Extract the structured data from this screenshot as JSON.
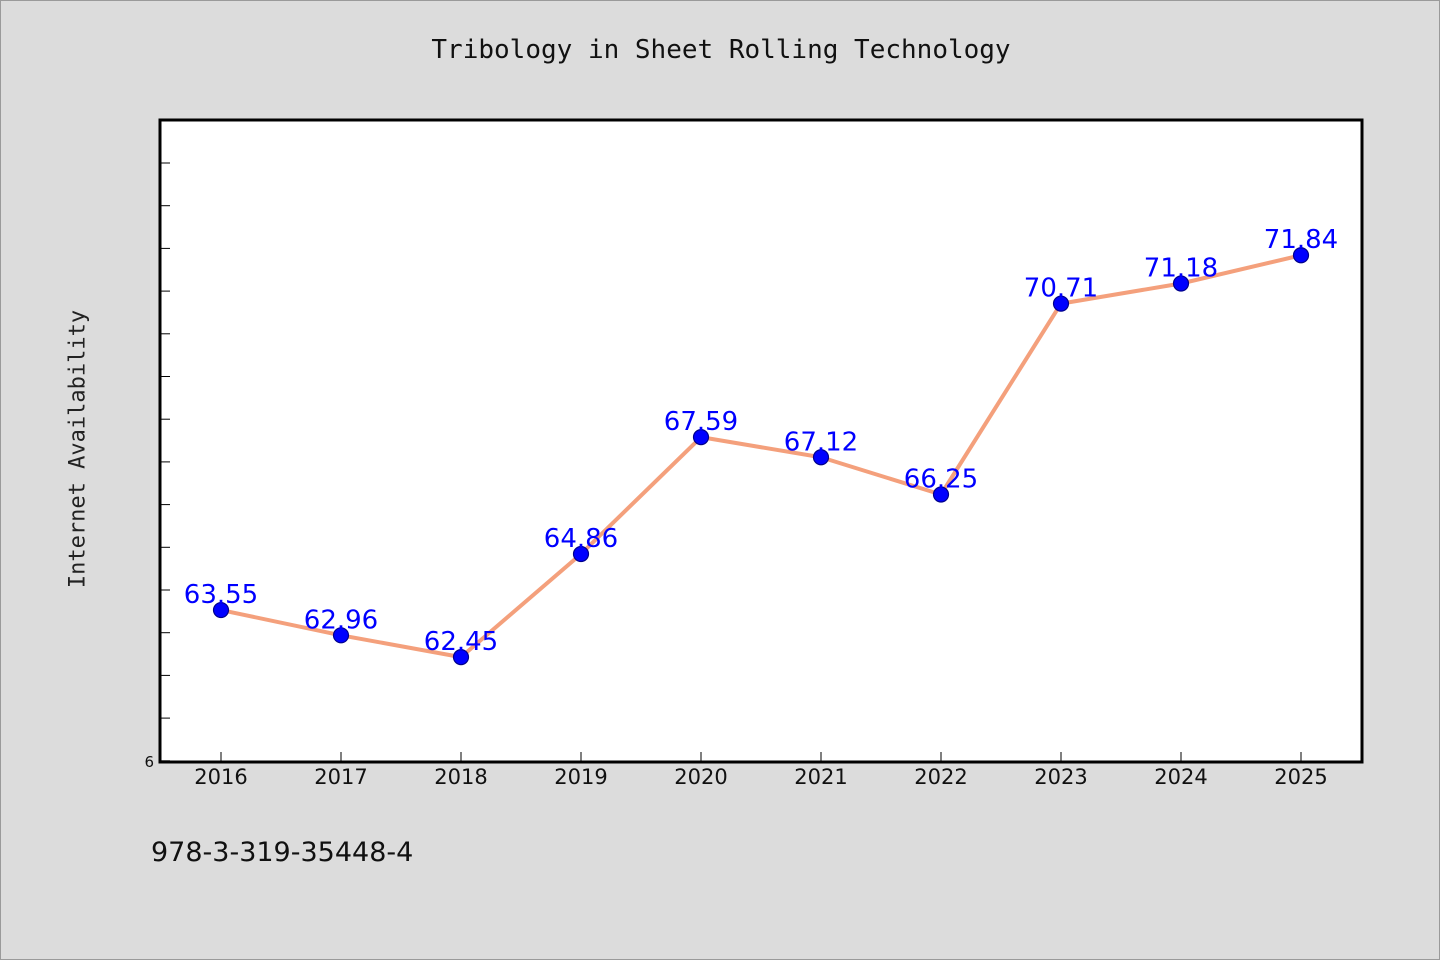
{
  "colors": {
    "background": "#dcdcdc",
    "plot_area": "#ffffff",
    "line": "#f4a07c",
    "marker": "#0000ff",
    "data_label": "#0000ff"
  },
  "footer_text": "978-3-319-35448-4",
  "chart_data": {
    "type": "line",
    "title": "Tribology in Sheet Rolling Technology",
    "xlabel": "",
    "ylabel": "Internet Availability",
    "categories": [
      "2016",
      "2017",
      "2018",
      "2019",
      "2020",
      "2021",
      "2022",
      "2023",
      "2024",
      "2025"
    ],
    "series": [
      {
        "values": [
          63.55,
          62.96,
          62.45,
          64.86,
          67.59,
          67.12,
          66.25,
          70.71,
          71.18,
          71.84
        ]
      }
    ],
    "data_labels": [
      "63.55",
      "62.96",
      "62.45",
      "64.86",
      "67.59",
      "67.12",
      "66.25",
      "70.71",
      "71.18",
      "71.84"
    ],
    "y_tick_labels": [
      "6"
    ],
    "ylim": [
      60,
      75
    ],
    "grid": false,
    "legend": "none"
  }
}
